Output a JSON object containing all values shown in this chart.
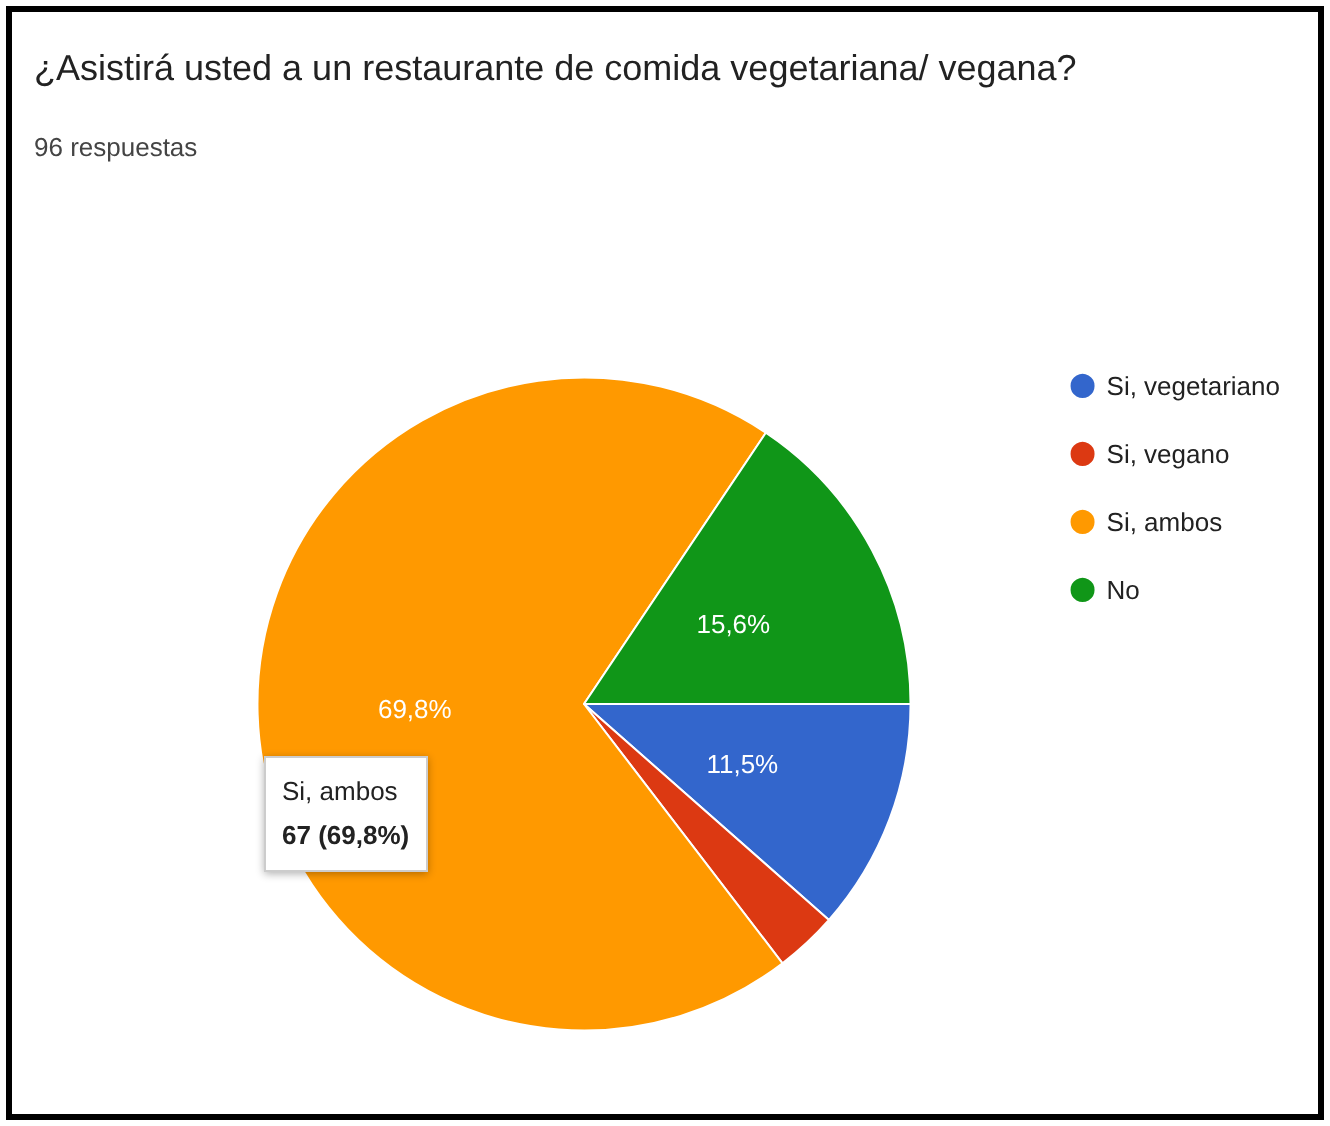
{
  "chart_data": {
    "type": "pie",
    "title": "¿Asistirá usted a un restaurante de comida vegetariana/ vegana?",
    "subtitle": "96 respuestas",
    "categories": [
      "Si, vegetariano",
      "Si, vegano",
      "Si, ambos",
      "No"
    ],
    "values": [
      11.5,
      3.1,
      69.8,
      15.6
    ],
    "colors": [
      "#3366cc",
      "#dc3912",
      "#ff9900",
      "#109618"
    ],
    "value_labels": [
      "11,5%",
      null,
      "69,8%",
      "15,6%"
    ],
    "legend": "right",
    "annotations": [
      "Si, ambos\n67 (69,8%)"
    ]
  }
}
